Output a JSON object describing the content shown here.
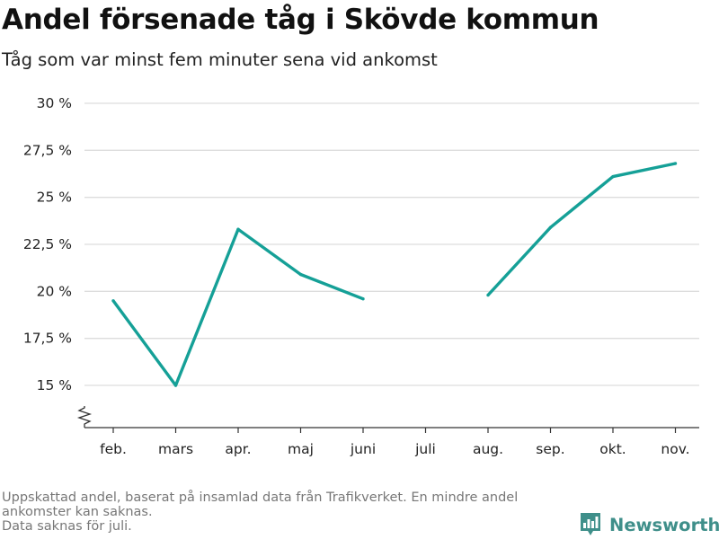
{
  "title": "Andel försenade tåg i Skövde kommun",
  "subtitle": "Tåg som var minst fem minuter sena vid ankomst",
  "footnote": {
    "line1": "Uppskattad andel, baserat på insamlad data från Trafikverket. En mindre andel",
    "line2": "ankomster kan saknas.",
    "line3": "Data saknas för juli."
  },
  "brand": {
    "name": "Newsworthy",
    "color": "#3f8f8a",
    "logo_icon": "bar-chart-logo-icon"
  },
  "chart_data": {
    "type": "line",
    "title": "Andel försenade tåg i Skövde kommun",
    "subtitle": "Tåg som var minst fem minuter sena vid ankomst",
    "xlabel": "",
    "ylabel": "",
    "categories": [
      "feb.",
      "mars",
      "apr.",
      "maj",
      "juni",
      "juli",
      "aug.",
      "sep.",
      "okt.",
      "nov."
    ],
    "series": [
      {
        "color": "#15a097",
        "values": [
          19.5,
          15.0,
          23.3,
          20.9,
          19.6,
          null,
          19.8,
          23.4,
          26.1,
          26.8
        ]
      }
    ],
    "yticks": [
      15,
      17.5,
      20,
      22.5,
      25,
      27.5,
      30
    ],
    "ytick_labels": [
      "15 %",
      "17,5 %",
      "20 %",
      "22,5 %",
      "25 %",
      "27,5 %",
      "30 %"
    ],
    "ylim": [
      15,
      30
    ],
    "y_axis_broken": true,
    "grid": "horizontal",
    "gridline_color": "#dddddd",
    "legend": "none"
  }
}
